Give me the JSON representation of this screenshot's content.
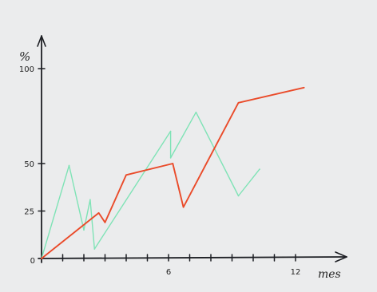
{
  "chart_data": {
    "type": "line",
    "title": "",
    "xlabel": "mes",
    "ylabel": "%",
    "xlim": [
      0,
      14
    ],
    "ylim": [
      0,
      110
    ],
    "y_ticks": [
      {
        "value": 0,
        "label": "0"
      },
      {
        "value": 25,
        "label": "25"
      },
      {
        "value": 50,
        "label": "50"
      },
      {
        "value": 100,
        "label": "100"
      }
    ],
    "x_ticks": [
      {
        "value": 1,
        "label": ""
      },
      {
        "value": 2,
        "label": ""
      },
      {
        "value": 3,
        "label": ""
      },
      {
        "value": 4,
        "label": ""
      },
      {
        "value": 5,
        "label": ""
      },
      {
        "value": 6,
        "label": "6"
      },
      {
        "value": 7,
        "label": ""
      },
      {
        "value": 8,
        "label": ""
      },
      {
        "value": 9,
        "label": ""
      },
      {
        "value": 10,
        "label": ""
      },
      {
        "value": 11,
        "label": ""
      },
      {
        "value": 12,
        "label": "12"
      }
    ],
    "grid": false,
    "legend": "none",
    "series": [
      {
        "color": "#7fe3b6",
        "points": [
          [
            0,
            0
          ],
          [
            1.3,
            49
          ],
          [
            2.0,
            15
          ],
          [
            2.3,
            31
          ],
          [
            2.5,
            5
          ],
          [
            6.1,
            67
          ],
          [
            6.1,
            53
          ],
          [
            7.3,
            77
          ],
          [
            9.3,
            33
          ],
          [
            10.3,
            47
          ]
        ]
      },
      {
        "color": "#ea4b2a",
        "points": [
          [
            0,
            0
          ],
          [
            2.7,
            24
          ],
          [
            3.0,
            19
          ],
          [
            4.0,
            44
          ],
          [
            6.2,
            50
          ],
          [
            6.7,
            27
          ],
          [
            9.3,
            82
          ],
          [
            12.4,
            90
          ]
        ]
      }
    ]
  }
}
